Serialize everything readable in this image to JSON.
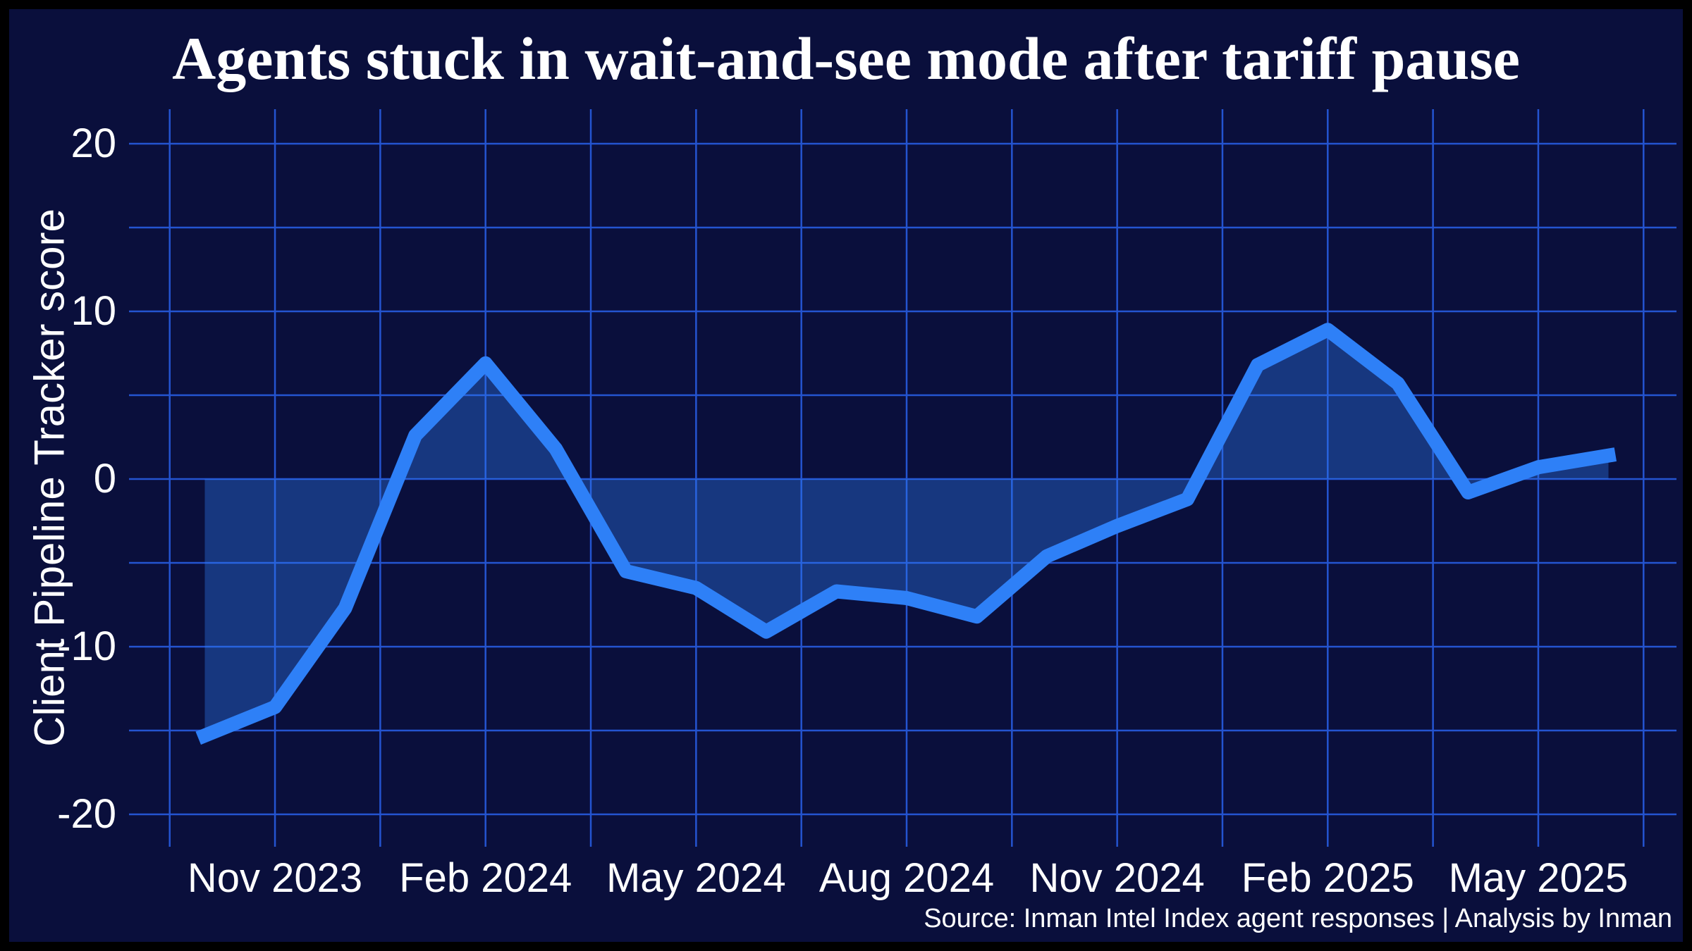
{
  "title": "Agents stuck in wait-and-see mode after tariff pause",
  "y_axis": {
    "label": "Client Pipeline Tracker score",
    "ticks": [
      20,
      10,
      0,
      -10,
      -20
    ]
  },
  "x_axis": {
    "labels": [
      "Nov 2023",
      "Feb 2024",
      "May 2024",
      "Aug 2024",
      "Nov 2024",
      "Feb 2025",
      "May 2025"
    ]
  },
  "source": "Source: Inman Intel Index agent responses | Analysis by Inman",
  "colors": {
    "frame": "#000000",
    "background": "#0a0f3c",
    "line": "#2e80f7",
    "fill": "rgba(46,128,247,0.36)",
    "gridline": "#2454d0",
    "text": "#ffffff"
  },
  "chart_data": {
    "type": "area",
    "title": "Agents stuck in wait-and-see mode after tariff pause",
    "xlabel": "",
    "ylabel": "Client Pipeline Tracker score",
    "ylim": [
      -20,
      20
    ],
    "y_gridline_step": 5,
    "grid": true,
    "legend": false,
    "baseline": 0,
    "x": [
      "Oct 2023",
      "Nov 2023",
      "Dec 2023",
      "Jan 2024",
      "Feb 2024",
      "Mar 2024",
      "Apr 2024",
      "May 2024",
      "Jun 2024",
      "Jul 2024",
      "Aug 2024",
      "Sep 2024",
      "Oct 2024",
      "Nov 2024",
      "Dec 2024",
      "Jan 2025",
      "Feb 2025",
      "Mar 2025",
      "Apr 2025",
      "May 2025",
      "Jun 2025"
    ],
    "values": [
      -15.3,
      -13.6,
      -7.7,
      2.6,
      6.9,
      1.8,
      -5.5,
      -6.5,
      -9.1,
      -6.7,
      -7.1,
      -8.2,
      -4.6,
      -2.8,
      -1.2,
      6.8,
      8.9,
      5.7,
      -0.8,
      0.7,
      1.4
    ],
    "source": "Source: Inman Intel Index agent responses | Analysis by Inman"
  }
}
